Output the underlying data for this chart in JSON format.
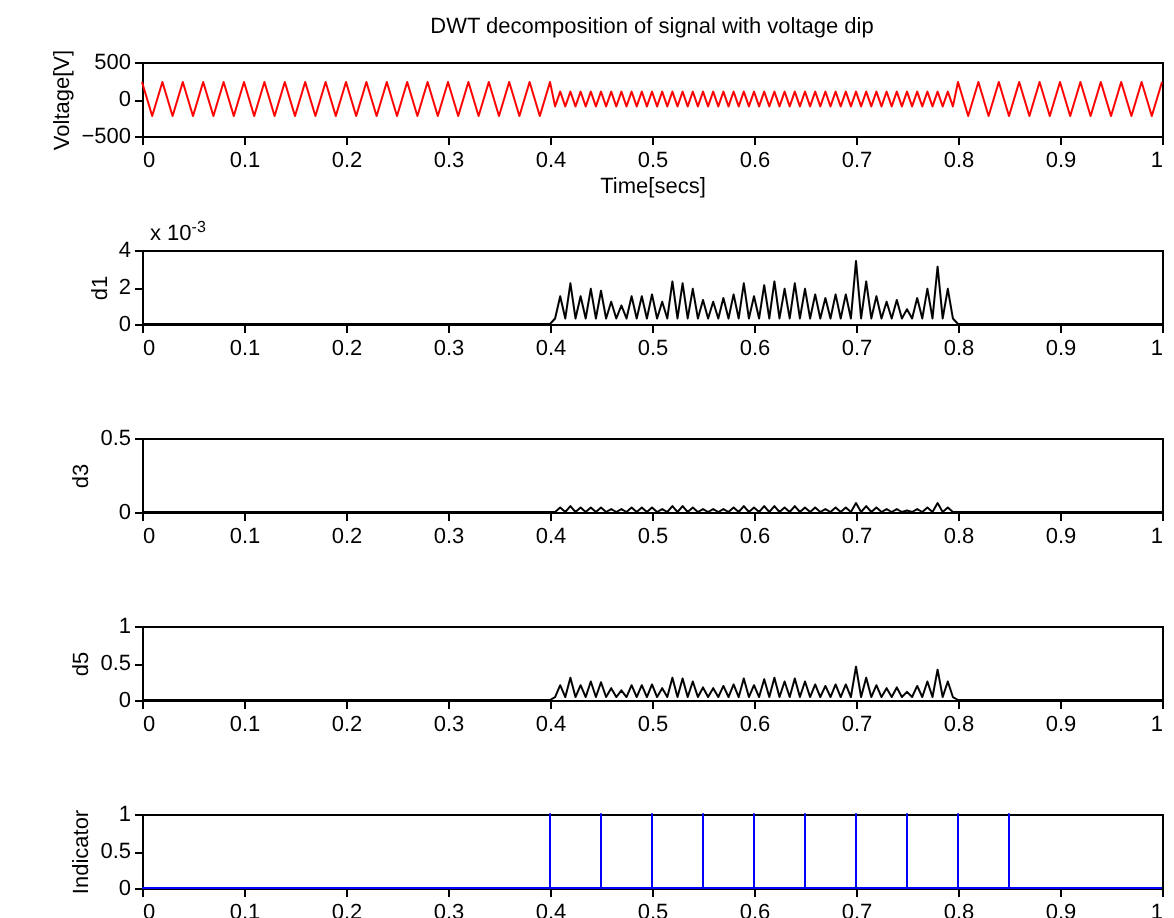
{
  "chart_data": [
    {
      "type": "line",
      "title": "DWT decomposition of signal with voltage dip",
      "xlabel": "Time[secs]",
      "ylabel": "Voltage[V]",
      "xlim": [
        0,
        1
      ],
      "xticks": [
        0,
        0.1,
        0.2,
        0.3,
        0.4,
        0.5,
        0.6,
        0.7,
        0.8,
        0.9,
        1
      ],
      "ylim": [
        -500,
        500
      ],
      "yticks": [
        -500,
        0,
        500
      ],
      "x": [
        0,
        0.01,
        0.02,
        0.03,
        0.04,
        0.05,
        0.06,
        0.07,
        0.08,
        0.09,
        0.1,
        0.11,
        0.12,
        0.13,
        0.14,
        0.15,
        0.16,
        0.17,
        0.18,
        0.19,
        0.2,
        0.21,
        0.22,
        0.23,
        0.24,
        0.25,
        0.26,
        0.27,
        0.28,
        0.29,
        0.3,
        0.31,
        0.32,
        0.33,
        0.34,
        0.35,
        0.36,
        0.37,
        0.38,
        0.39,
        0.4,
        0.405,
        0.41,
        0.415,
        0.42,
        0.425,
        0.43,
        0.435,
        0.44,
        0.445,
        0.45,
        0.455,
        0.46,
        0.465,
        0.47,
        0.475,
        0.48,
        0.485,
        0.49,
        0.495,
        0.5,
        0.505,
        0.51,
        0.515,
        0.52,
        0.525,
        0.53,
        0.535,
        0.54,
        0.545,
        0.55,
        0.555,
        0.56,
        0.565,
        0.57,
        0.575,
        0.58,
        0.585,
        0.59,
        0.595,
        0.6,
        0.605,
        0.61,
        0.615,
        0.62,
        0.625,
        0.63,
        0.635,
        0.64,
        0.645,
        0.65,
        0.655,
        0.66,
        0.665,
        0.67,
        0.675,
        0.68,
        0.685,
        0.69,
        0.695,
        0.7,
        0.705,
        0.71,
        0.715,
        0.72,
        0.725,
        0.73,
        0.735,
        0.74,
        0.745,
        0.75,
        0.755,
        0.76,
        0.765,
        0.77,
        0.775,
        0.78,
        0.785,
        0.79,
        0.795,
        0.8,
        0.81,
        0.82,
        0.83,
        0.84,
        0.85,
        0.86,
        0.87,
        0.88,
        0.89,
        0.9,
        0.91,
        0.92,
        0.93,
        0.94,
        0.95,
        0.96,
        0.97,
        0.98,
        0.99,
        1
      ],
      "series": [
        {
          "color": "#ff0000",
          "values": [
            230,
            -230,
            230,
            -230,
            230,
            -230,
            230,
            -230,
            230,
            -230,
            230,
            -230,
            230,
            -230,
            230,
            -230,
            230,
            -230,
            230,
            -230,
            230,
            -230,
            230,
            -230,
            230,
            -230,
            230,
            -230,
            230,
            -230,
            230,
            -230,
            230,
            -230,
            230,
            -230,
            230,
            -230,
            230,
            -230,
            230,
            -100,
            100,
            -100,
            100,
            -100,
            100,
            -100,
            100,
            -100,
            100,
            -100,
            100,
            -100,
            100,
            -100,
            100,
            -100,
            100,
            -100,
            100,
            -100,
            100,
            -100,
            100,
            -100,
            100,
            -100,
            100,
            -100,
            100,
            -100,
            100,
            -100,
            100,
            -100,
            100,
            -100,
            100,
            -100,
            100,
            -100,
            100,
            -100,
            100,
            -100,
            100,
            -100,
            100,
            -100,
            100,
            -100,
            100,
            -100,
            100,
            -100,
            100,
            -100,
            100,
            -100,
            100,
            -100,
            100,
            -100,
            100,
            -100,
            100,
            -100,
            100,
            -100,
            100,
            -100,
            100,
            -100,
            100,
            -100,
            100,
            -100,
            100,
            -100,
            230,
            -230,
            230,
            -230,
            230,
            -230,
            230,
            -230,
            230,
            -230,
            230,
            -230,
            230,
            -230,
            230,
            -230,
            230,
            -230,
            230,
            -230,
            230
          ]
        }
      ]
    },
    {
      "type": "line",
      "ylabel": "d1",
      "annotations": [
        "x 10$^{-3}$"
      ],
      "xlim": [
        0,
        1
      ],
      "xticks": [
        0,
        0.1,
        0.2,
        0.3,
        0.4,
        0.5,
        0.6,
        0.7,
        0.8,
        0.9,
        1
      ],
      "ylim": [
        0,
        4
      ],
      "yticks": [
        0,
        2,
        4
      ],
      "x": [
        0,
        0.4,
        0.405,
        0.41,
        0.415,
        0.42,
        0.425,
        0.43,
        0.435,
        0.44,
        0.445,
        0.45,
        0.455,
        0.46,
        0.465,
        0.47,
        0.475,
        0.48,
        0.485,
        0.49,
        0.495,
        0.5,
        0.505,
        0.51,
        0.515,
        0.52,
        0.525,
        0.53,
        0.535,
        0.54,
        0.545,
        0.55,
        0.555,
        0.56,
        0.565,
        0.57,
        0.575,
        0.58,
        0.585,
        0.59,
        0.595,
        0.6,
        0.605,
        0.61,
        0.615,
        0.62,
        0.625,
        0.63,
        0.635,
        0.64,
        0.645,
        0.65,
        0.655,
        0.66,
        0.665,
        0.67,
        0.675,
        0.68,
        0.685,
        0.69,
        0.695,
        0.7,
        0.705,
        0.71,
        0.715,
        0.72,
        0.725,
        0.73,
        0.735,
        0.74,
        0.745,
        0.75,
        0.755,
        0.76,
        0.765,
        0.77,
        0.775,
        0.78,
        0.785,
        0.79,
        0.795,
        0.8,
        1
      ],
      "series": [
        {
          "color": "#000000",
          "values": [
            0,
            0,
            0.3,
            1.5,
            0.3,
            2.2,
            0.3,
            1.5,
            0.3,
            1.9,
            0.3,
            1.8,
            0.3,
            1.2,
            0.3,
            1.0,
            0.3,
            1.5,
            0.3,
            1.5,
            0.3,
            1.6,
            0.3,
            1.2,
            0.3,
            2.3,
            0.3,
            2.2,
            0.3,
            1.9,
            0.3,
            1.3,
            0.3,
            1.2,
            0.3,
            1.4,
            0.3,
            1.6,
            0.3,
            2.2,
            0.3,
            1.5,
            0.3,
            2.1,
            0.3,
            2.3,
            0.3,
            1.9,
            0.3,
            2.2,
            0.3,
            1.9,
            0.3,
            1.6,
            0.3,
            1.4,
            0.3,
            1.6,
            0.3,
            1.6,
            0.3,
            3.4,
            0.3,
            2.3,
            0.3,
            1.5,
            0.3,
            1.2,
            0.3,
            1.3,
            0.3,
            0.8,
            0.3,
            1.4,
            0.3,
            1.9,
            0.3,
            3.1,
            0.3,
            1.9,
            0.3,
            0,
            0
          ]
        }
      ]
    },
    {
      "type": "line",
      "ylabel": "d3",
      "xlim": [
        0,
        1
      ],
      "xticks": [
        0,
        0.1,
        0.2,
        0.3,
        0.4,
        0.5,
        0.6,
        0.7,
        0.8,
        0.9,
        1
      ],
      "ylim": [
        0,
        0.5
      ],
      "yticks": [
        0,
        0.5
      ],
      "x": [
        0,
        0.4,
        0.405,
        0.41,
        0.415,
        0.42,
        0.425,
        0.43,
        0.435,
        0.44,
        0.445,
        0.45,
        0.455,
        0.46,
        0.465,
        0.47,
        0.475,
        0.48,
        0.485,
        0.49,
        0.495,
        0.5,
        0.505,
        0.51,
        0.515,
        0.52,
        0.525,
        0.53,
        0.535,
        0.54,
        0.545,
        0.55,
        0.555,
        0.56,
        0.565,
        0.57,
        0.575,
        0.58,
        0.585,
        0.59,
        0.595,
        0.6,
        0.605,
        0.61,
        0.615,
        0.62,
        0.625,
        0.63,
        0.635,
        0.64,
        0.645,
        0.65,
        0.655,
        0.66,
        0.665,
        0.67,
        0.675,
        0.68,
        0.685,
        0.69,
        0.695,
        0.7,
        0.705,
        0.71,
        0.715,
        0.72,
        0.725,
        0.73,
        0.735,
        0.74,
        0.745,
        0.75,
        0.755,
        0.76,
        0.765,
        0.77,
        0.775,
        0.78,
        0.785,
        0.79,
        0.795,
        0.8,
        1
      ],
      "series": [
        {
          "color": "#000000",
          "values": [
            0,
            0,
            0,
            0.03,
            0,
            0.04,
            0,
            0.03,
            0,
            0.03,
            0,
            0.03,
            0,
            0.02,
            0,
            0.02,
            0,
            0.03,
            0,
            0.03,
            0,
            0.03,
            0,
            0.02,
            0,
            0.04,
            0,
            0.04,
            0,
            0.03,
            0,
            0.02,
            0,
            0.02,
            0,
            0.02,
            0,
            0.03,
            0,
            0.04,
            0,
            0.03,
            0,
            0.04,
            0,
            0.04,
            0,
            0.03,
            0,
            0.04,
            0,
            0.03,
            0,
            0.03,
            0,
            0.02,
            0,
            0.03,
            0,
            0.03,
            0,
            0.06,
            0,
            0.04,
            0,
            0.03,
            0,
            0.02,
            0,
            0.02,
            0,
            0.01,
            0,
            0.02,
            0,
            0.03,
            0,
            0.06,
            0,
            0.03,
            0,
            0,
            0
          ]
        }
      ]
    },
    {
      "type": "line",
      "ylabel": "d5",
      "xlim": [
        0,
        1
      ],
      "xticks": [
        0,
        0.1,
        0.2,
        0.3,
        0.4,
        0.5,
        0.6,
        0.7,
        0.8,
        0.9,
        1
      ],
      "ylim": [
        0,
        1
      ],
      "yticks": [
        0,
        0.5,
        1
      ],
      "x": [
        0,
        0.4,
        0.405,
        0.41,
        0.415,
        0.42,
        0.425,
        0.43,
        0.435,
        0.44,
        0.445,
        0.45,
        0.455,
        0.46,
        0.465,
        0.47,
        0.475,
        0.48,
        0.485,
        0.49,
        0.495,
        0.5,
        0.505,
        0.51,
        0.515,
        0.52,
        0.525,
        0.53,
        0.535,
        0.54,
        0.545,
        0.55,
        0.555,
        0.56,
        0.565,
        0.57,
        0.575,
        0.58,
        0.585,
        0.59,
        0.595,
        0.6,
        0.605,
        0.61,
        0.615,
        0.62,
        0.625,
        0.63,
        0.635,
        0.64,
        0.645,
        0.65,
        0.655,
        0.66,
        0.665,
        0.67,
        0.675,
        0.68,
        0.685,
        0.69,
        0.695,
        0.7,
        0.705,
        0.71,
        0.715,
        0.72,
        0.725,
        0.73,
        0.735,
        0.74,
        0.745,
        0.75,
        0.755,
        0.76,
        0.765,
        0.77,
        0.775,
        0.78,
        0.785,
        0.79,
        0.795,
        0.8,
        1
      ],
      "series": [
        {
          "color": "#000000",
          "values": [
            0,
            0,
            0.04,
            0.2,
            0.04,
            0.3,
            0.04,
            0.2,
            0.04,
            0.25,
            0.04,
            0.24,
            0.04,
            0.16,
            0.04,
            0.13,
            0.04,
            0.2,
            0.04,
            0.2,
            0.04,
            0.21,
            0.04,
            0.16,
            0.04,
            0.3,
            0.04,
            0.29,
            0.04,
            0.25,
            0.04,
            0.17,
            0.04,
            0.16,
            0.04,
            0.19,
            0.04,
            0.21,
            0.04,
            0.29,
            0.04,
            0.2,
            0.04,
            0.28,
            0.04,
            0.3,
            0.04,
            0.25,
            0.04,
            0.29,
            0.04,
            0.25,
            0.04,
            0.21,
            0.04,
            0.19,
            0.04,
            0.21,
            0.04,
            0.21,
            0.04,
            0.45,
            0.04,
            0.3,
            0.04,
            0.2,
            0.04,
            0.16,
            0.04,
            0.17,
            0.04,
            0.11,
            0.04,
            0.19,
            0.04,
            0.25,
            0.04,
            0.41,
            0.04,
            0.25,
            0.04,
            0,
            0
          ]
        }
      ]
    },
    {
      "type": "line",
      "ylabel": "Indicator",
      "xlim": [
        0,
        1
      ],
      "xticks": [
        0,
        0.1,
        0.2,
        0.3,
        0.4,
        0.5,
        0.6,
        0.7,
        0.8,
        0.9,
        1
      ],
      "ylim": [
        0,
        1
      ],
      "yticks": [
        0,
        0.5,
        1
      ],
      "x": [
        0,
        0.4,
        0.4,
        0.4,
        0.45,
        0.45,
        0.45,
        0.5,
        0.5,
        0.5,
        0.55,
        0.55,
        0.55,
        0.6,
        0.6,
        0.6,
        0.65,
        0.65,
        0.65,
        0.7,
        0.7,
        0.7,
        0.75,
        0.75,
        0.75,
        0.8,
        0.8,
        0.8,
        0.85,
        0.85,
        0.85,
        1
      ],
      "series": [
        {
          "color": "#0000ff",
          "values": [
            0,
            0,
            1,
            0,
            0,
            1,
            0,
            0,
            1,
            0,
            0,
            1,
            0,
            0,
            1,
            0,
            0,
            1,
            0,
            0,
            1,
            0,
            0,
            1,
            0,
            0,
            1,
            0,
            0,
            1,
            0,
            0
          ]
        }
      ]
    }
  ]
}
